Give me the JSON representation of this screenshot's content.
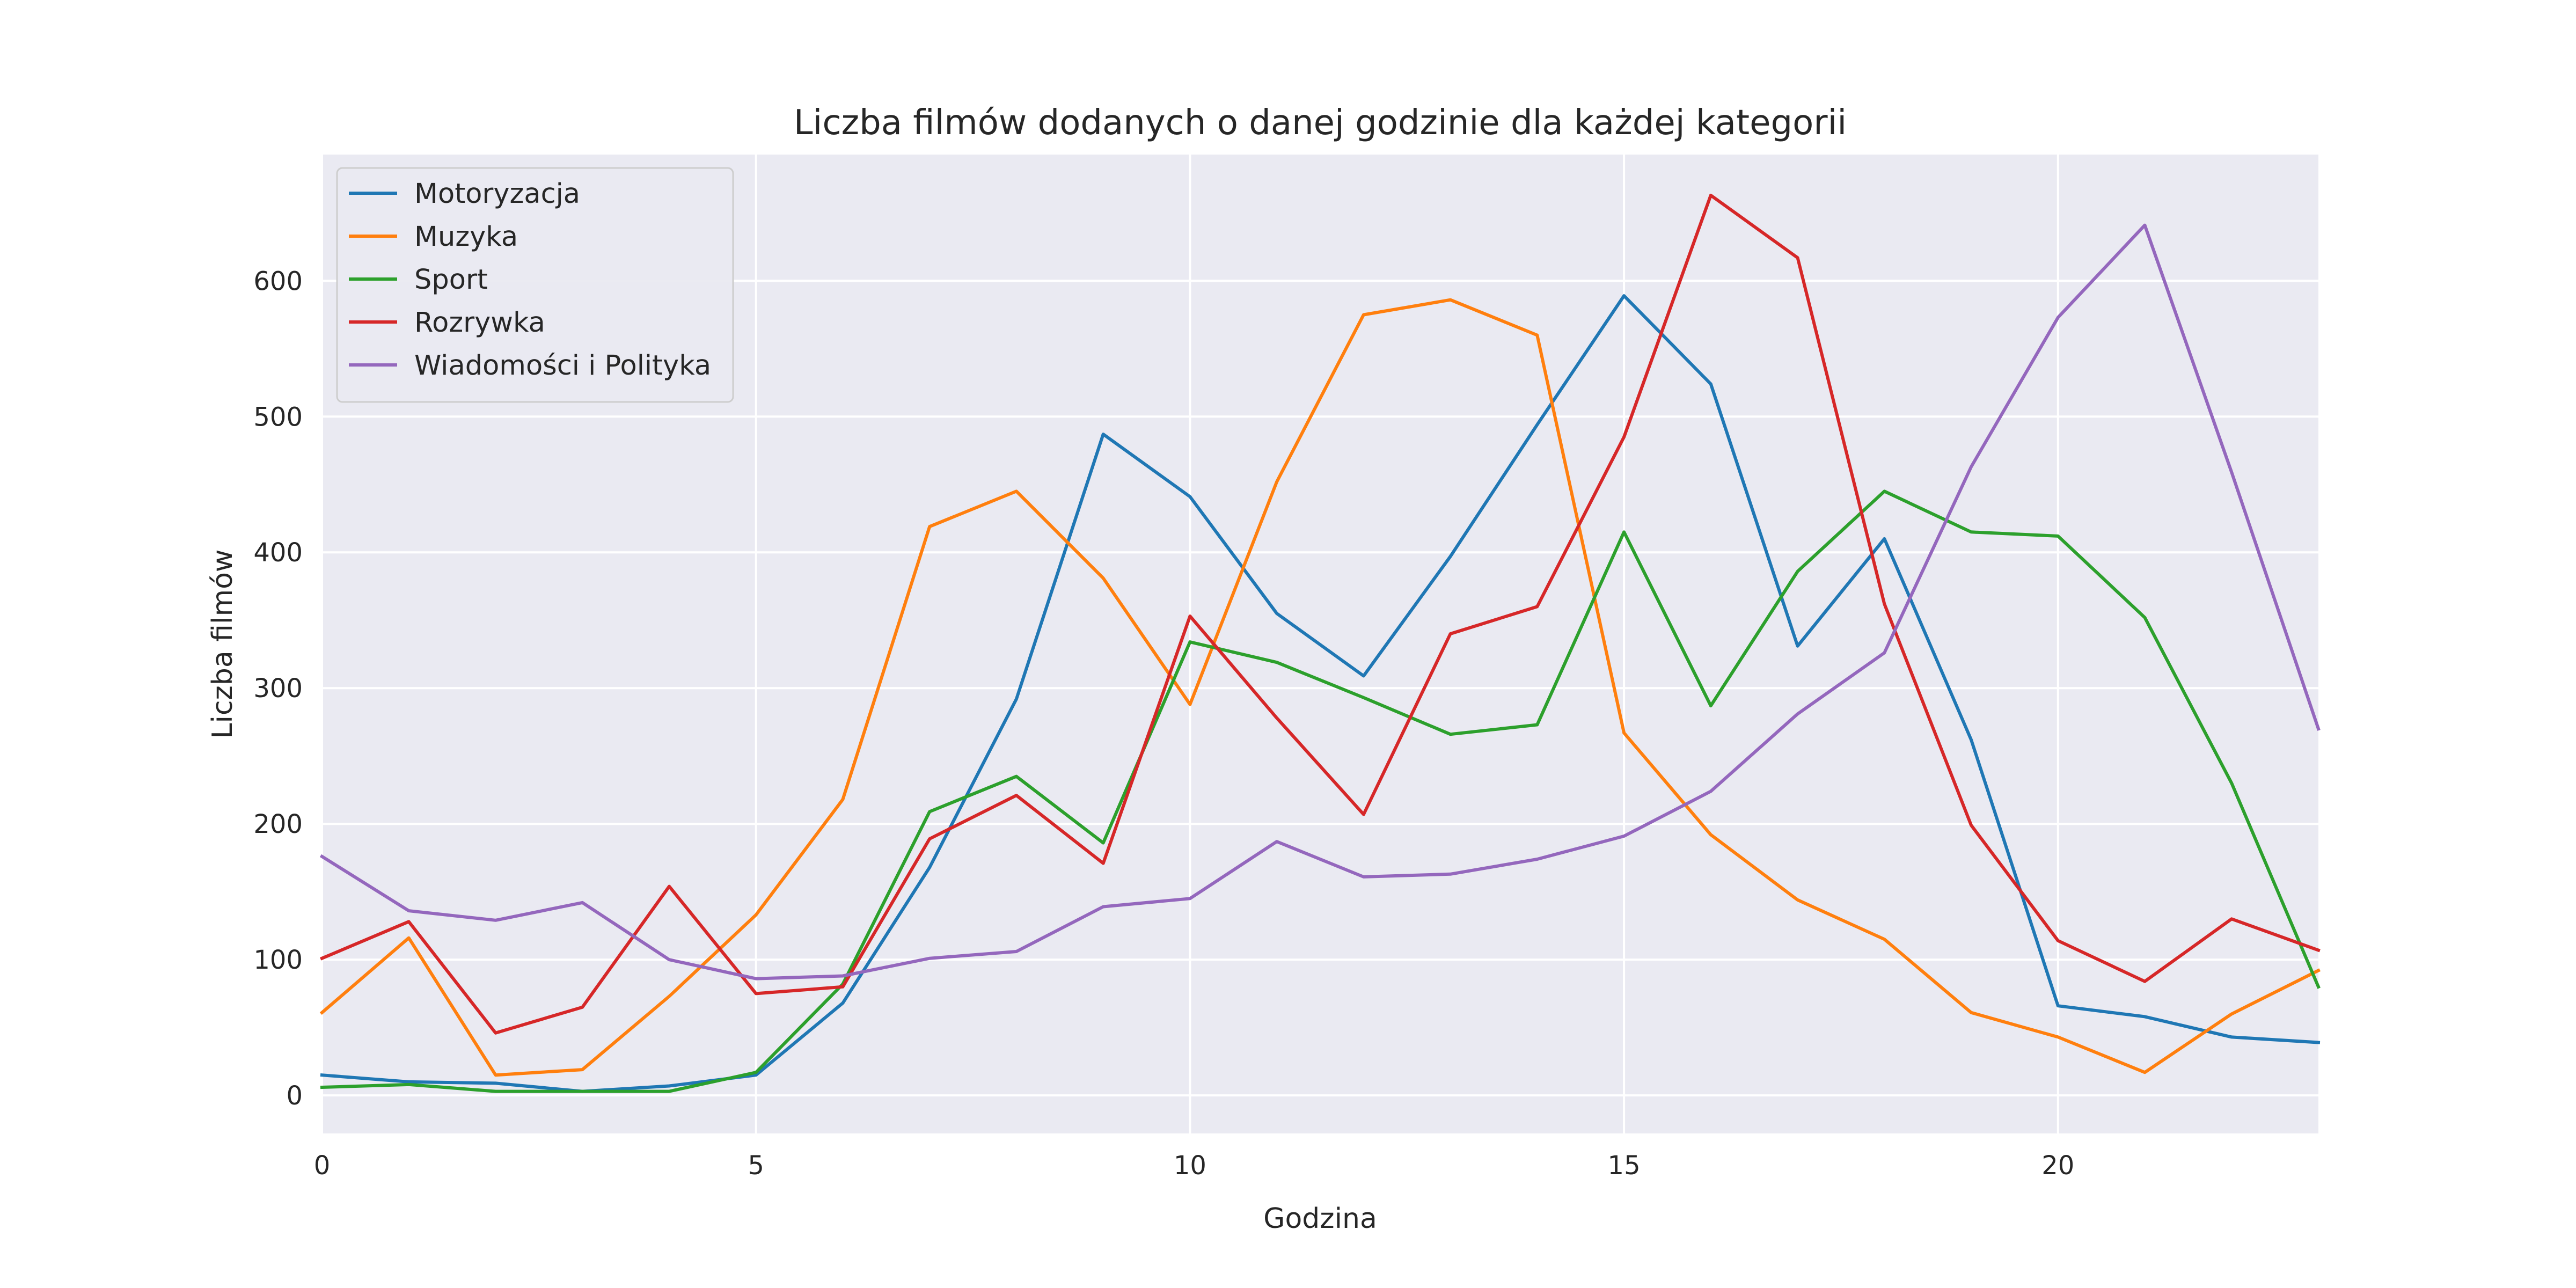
{
  "chart_data": {
    "type": "line",
    "title": "Liczba filmów dodanych o danej godzinie dla każdej kategorii",
    "xlabel": "Godzina",
    "ylabel": "Liczba filmów",
    "xlim": [
      0,
      23
    ],
    "ylim": [
      -28,
      693
    ],
    "xticks": [
      0,
      5,
      10,
      15,
      20
    ],
    "yticks": [
      0,
      100,
      200,
      300,
      400,
      500,
      600
    ],
    "grid": true,
    "legend_position": "upper left",
    "background": "#eaeaf2",
    "x": [
      0,
      1,
      2,
      3,
      4,
      5,
      6,
      7,
      8,
      9,
      10,
      11,
      12,
      13,
      14,
      15,
      16,
      17,
      18,
      19,
      20,
      21,
      22,
      23
    ],
    "series": [
      {
        "name": "Motoryzacja",
        "color": "#1f77b4",
        "values": [
          15,
          10,
          9,
          3,
          7,
          15,
          68,
          168,
          292,
          487,
          441,
          355,
          309,
          397,
          494,
          589,
          524,
          331,
          410,
          262,
          66,
          58,
          43,
          39
        ]
      },
      {
        "name": "Muzyka",
        "color": "#ff7f0e",
        "values": [
          61,
          116,
          15,
          19,
          73,
          133,
          218,
          419,
          445,
          381,
          288,
          452,
          575,
          586,
          560,
          267,
          192,
          144,
          115,
          61,
          43,
          17,
          60,
          92
        ]
      },
      {
        "name": "Sport",
        "color": "#2ca02c",
        "values": [
          6,
          8,
          3,
          3,
          3,
          17,
          82,
          209,
          235,
          186,
          334,
          319,
          293,
          266,
          273,
          415,
          287,
          386,
          445,
          415,
          412,
          352,
          230,
          80
        ]
      },
      {
        "name": "Rozrywka",
        "color": "#d62728",
        "values": [
          101,
          128,
          46,
          65,
          154,
          75,
          80,
          189,
          221,
          171,
          353,
          278,
          207,
          340,
          360,
          485,
          663,
          617,
          362,
          199,
          114,
          84,
          130,
          107
        ]
      },
      {
        "name": "Wiadomości i Polityka",
        "color": "#9467bd",
        "values": [
          176,
          136,
          129,
          142,
          100,
          86,
          88,
          101,
          106,
          139,
          145,
          187,
          161,
          163,
          174,
          191,
          224,
          281,
          326,
          463,
          573,
          641,
          459,
          270
        ]
      }
    ]
  }
}
